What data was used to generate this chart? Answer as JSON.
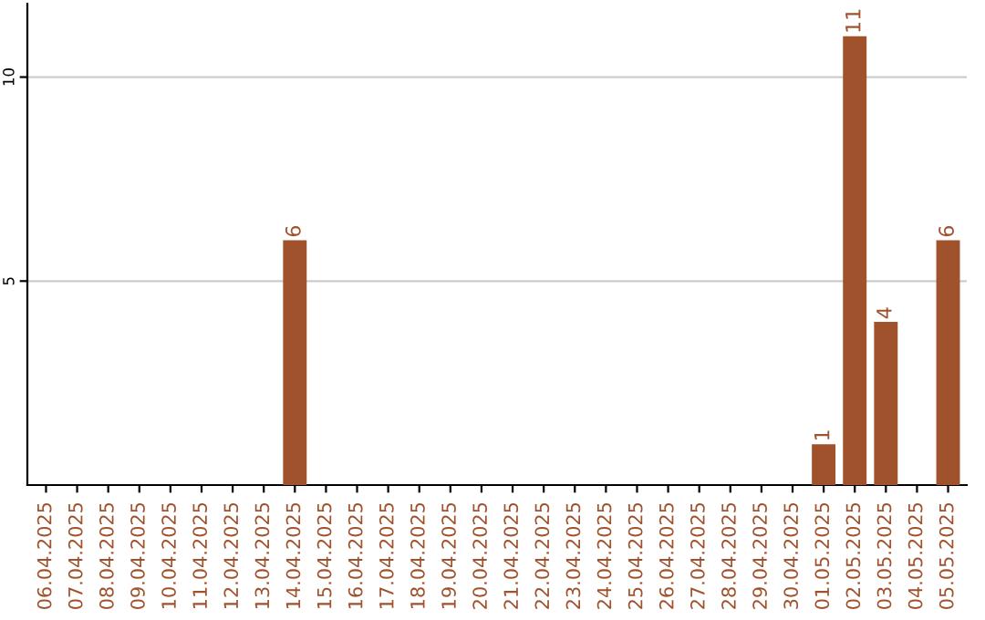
{
  "chart_data": {
    "type": "bar",
    "categories": [
      "06.04.2025",
      "07.04.2025",
      "08.04.2025",
      "09.04.2025",
      "10.04.2025",
      "11.04.2025",
      "12.04.2025",
      "13.04.2025",
      "14.04.2025",
      "15.04.2025",
      "16.04.2025",
      "17.04.2025",
      "18.04.2025",
      "19.04.2025",
      "20.04.2025",
      "21.04.2025",
      "22.04.2025",
      "23.04.2025",
      "24.04.2025",
      "25.04.2025",
      "26.04.2025",
      "27.04.2025",
      "28.04.2025",
      "29.04.2025",
      "30.04.2025",
      "01.05.2025",
      "02.05.2025",
      "03.05.2025",
      "04.05.2025",
      "05.05.2025"
    ],
    "values": [
      0,
      0,
      0,
      0,
      0,
      0,
      0,
      0,
      6,
      0,
      0,
      0,
      0,
      0,
      0,
      0,
      0,
      0,
      0,
      0,
      0,
      0,
      0,
      0,
      0,
      1,
      11,
      4,
      0,
      6
    ],
    "value_labels": [
      null,
      null,
      null,
      null,
      null,
      null,
      null,
      null,
      "6",
      null,
      null,
      null,
      null,
      null,
      null,
      null,
      null,
      null,
      null,
      null,
      null,
      null,
      null,
      null,
      null,
      "1",
      "11",
      "4",
      null,
      "6"
    ],
    "color": "#a0522d",
    "ylim": [
      0,
      11.8
    ],
    "yticks": [
      5,
      10
    ],
    "grid": "y"
  }
}
